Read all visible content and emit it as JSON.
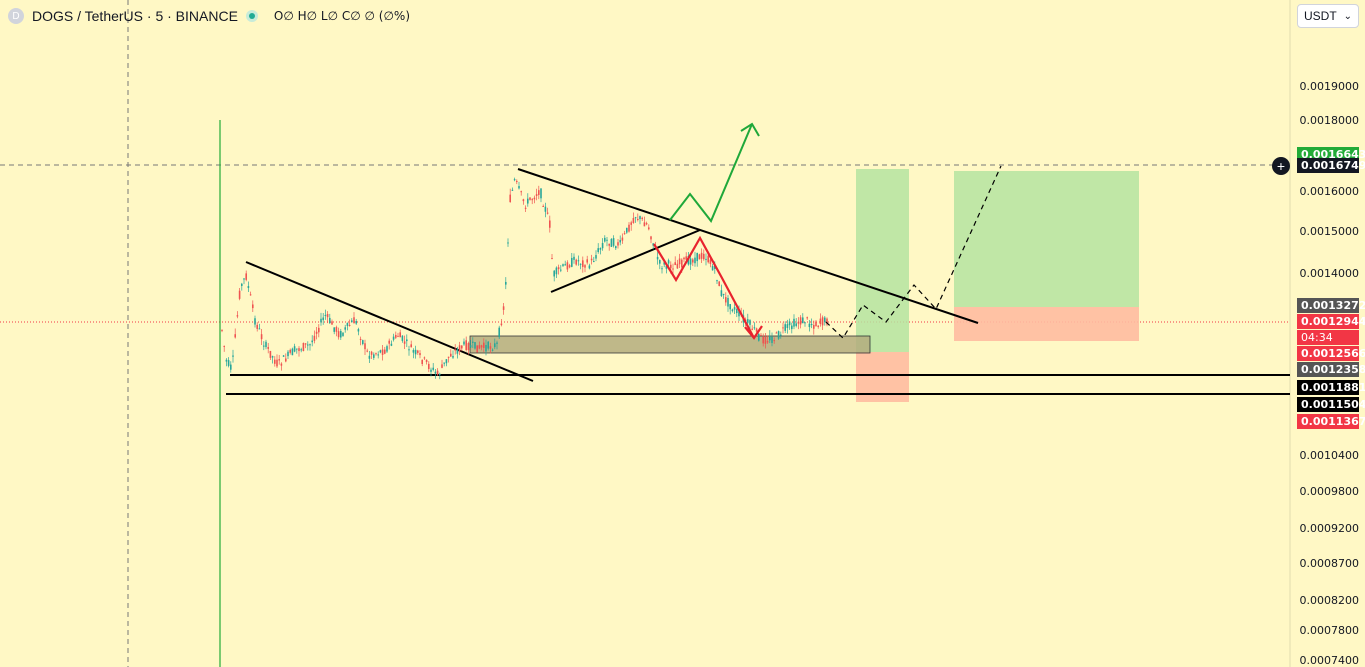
{
  "header": {
    "symbol_badge": "D",
    "title": "DOGS / TetherUS · 5 · BINANCE",
    "ohlc": "O∅ H∅ L∅ C∅ ∅ (∅%)"
  },
  "currency_select": {
    "value": "USDT",
    "icon": "chevron-down-icon"
  },
  "price_axis": {
    "ticks": [
      "0.0019000",
      "0.0018000",
      "0.0016000",
      "0.0015000",
      "0.0014000",
      "0.0010400",
      "0.0009800",
      "0.0009200",
      "0.0008700",
      "0.0008200",
      "0.0007800",
      "0.0007400"
    ]
  },
  "price_tags": [
    {
      "id": "target-hidden",
      "text": "0.0016643",
      "color": "#22ab38"
    },
    {
      "id": "target",
      "text": "0.0016749",
      "color": "#131722"
    },
    {
      "id": "entry",
      "text": "0.0013272",
      "color": "#555555"
    },
    {
      "id": "current",
      "text": "0.0012944",
      "color": "#f23645"
    },
    {
      "id": "countdown",
      "text": "04:34",
      "color": "#f23645"
    },
    {
      "id": "zone-top",
      "text": "0.0012566",
      "color": "#f23645"
    },
    {
      "id": "zone-mid",
      "text": "0.0012358",
      "color": "#555555"
    },
    {
      "id": "support1",
      "text": "0.0011881",
      "color": "#000000"
    },
    {
      "id": "support2",
      "text": "0.0011504",
      "color": "#000000"
    },
    {
      "id": "stop",
      "text": "0.0011367",
      "color": "#f23645"
    }
  ],
  "colors": {
    "up": "#26a69a",
    "down": "#ef5350",
    "bg": "#fff8c5",
    "long_zone": "#b5e4a0",
    "stop_zone": "#ffbba0"
  }
}
